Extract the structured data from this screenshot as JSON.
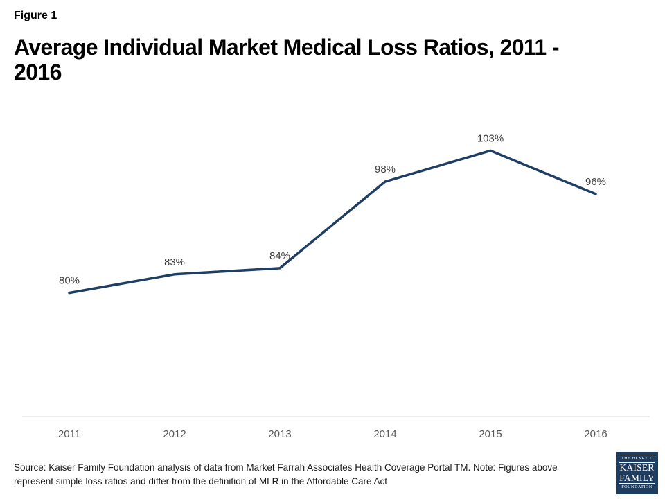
{
  "header": {
    "figure_label": "Figure 1",
    "title": "Average Individual Market Medical Loss Ratios, 2011 - 2016"
  },
  "chart_data": {
    "type": "line",
    "title": "Average Individual Market Medical Loss Ratios, 2011 - 2016",
    "categories": [
      "2011",
      "2012",
      "2013",
      "2014",
      "2015",
      "2016"
    ],
    "values": [
      80,
      83,
      84,
      98,
      103,
      96
    ],
    "data_labels": [
      "80%",
      "83%",
      "84%",
      "98%",
      "103%",
      "96%"
    ],
    "xlabel": "",
    "ylabel": "",
    "ylim": [
      60,
      110
    ],
    "grid": false,
    "legend_position": "none",
    "line_color": "#1f3e63",
    "data_label_color": "#3f3f3f",
    "tick_label_color": "#595959",
    "axis_line_color": "#d9d9d9"
  },
  "footer": {
    "source": "Source: Kaiser Family Foundation analysis of data from Market Farrah Associates Health Coverage Portal TM. Note: Figures above represent simple loss ratios and differ from the definition of MLR in the Affordable Care Act",
    "logo": {
      "line1": "THE HENRY J.",
      "line2": "KAISER",
      "line3": "FAMILY",
      "line4": "FOUNDATION",
      "bg_color": "#1e3c5f"
    }
  }
}
